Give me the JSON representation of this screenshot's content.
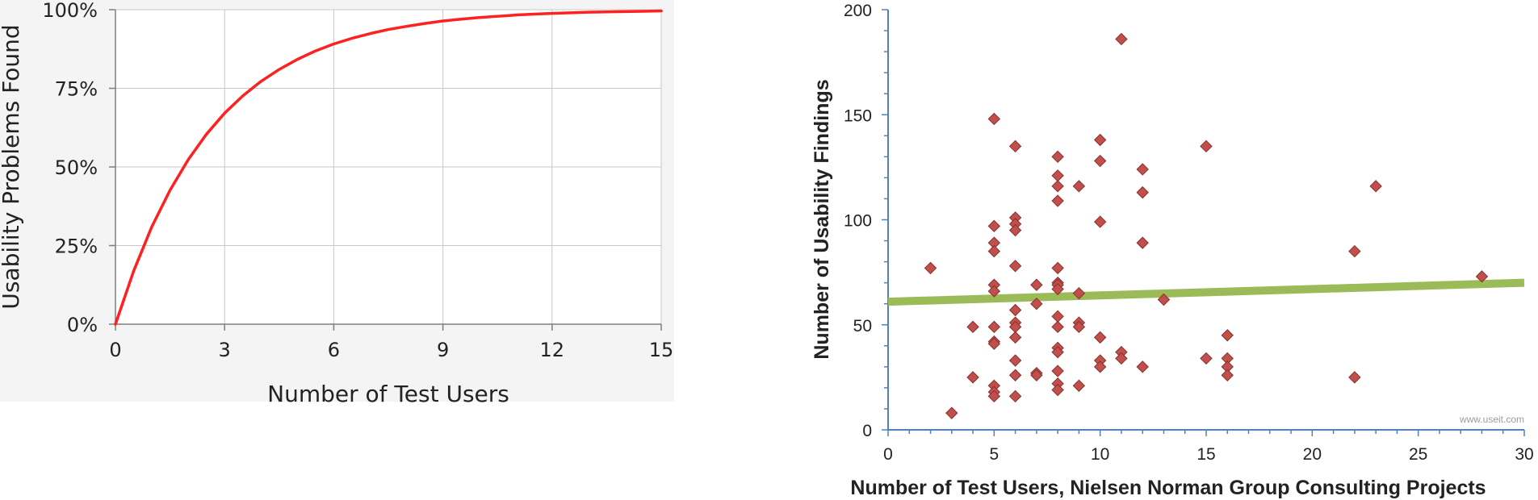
{
  "chart_data": [
    {
      "type": "line",
      "title": "",
      "xlabel": "Number of Test Users",
      "ylabel": "Usability Problems Found",
      "xlim": [
        0,
        15
      ],
      "ylim": [
        0,
        100
      ],
      "x_ticks": [
        0,
        3,
        6,
        9,
        12,
        15
      ],
      "x_tick_labels": [
        "0",
        "3",
        "6",
        "9",
        "12",
        "15"
      ],
      "y_ticks": [
        0,
        25,
        50,
        75,
        100
      ],
      "y_tick_labels": [
        "0%",
        "25%",
        "50%",
        "75%",
        "100%"
      ],
      "grid": true,
      "colors": {
        "line": "#ff2020",
        "grid": "#c8c8c8",
        "axis": "#7f7f7f",
        "text": "#222222"
      },
      "series": [
        {
          "x": [
            0,
            0.5,
            1,
            1.5,
            2,
            2.5,
            3,
            3.5,
            4,
            4.5,
            5,
            5.5,
            6,
            6.5,
            7,
            7.5,
            8,
            8.5,
            9,
            9.5,
            10,
            10.5,
            11,
            11.5,
            12,
            12.5,
            13,
            13.5,
            14,
            14.5,
            15
          ],
          "y": [
            0,
            16.9,
            31.0,
            42.6,
            52.3,
            60.4,
            67.1,
            72.6,
            77.2,
            81.0,
            84.2,
            86.9,
            89.1,
            90.9,
            92.4,
            93.7,
            94.7,
            95.6,
            96.4,
            97.0,
            97.5,
            97.9,
            98.3,
            98.6,
            98.8,
            99.0,
            99.2,
            99.3,
            99.4,
            99.5,
            99.6
          ]
        }
      ]
    },
    {
      "type": "scatter",
      "title": "",
      "xlabel": "Number of Test Users, Nielsen Norman Group Consulting Projects",
      "ylabel": "Number of Usability Findings",
      "xlim": [
        0,
        30
      ],
      "ylim": [
        0,
        200
      ],
      "x_ticks": [
        0,
        5,
        10,
        15,
        20,
        25,
        30
      ],
      "x_tick_labels": [
        "0",
        "5",
        "10",
        "15",
        "20",
        "25",
        "30"
      ],
      "y_ticks": [
        0,
        50,
        100,
        150,
        200
      ],
      "y_tick_labels": [
        "0",
        "50",
        "100",
        "150",
        "200"
      ],
      "grid": false,
      "colors": {
        "marker": "#c0504d",
        "marker_stroke": "#8b2f2b",
        "trendline": "#9bbb59",
        "axis": "#4f81bd",
        "text": "#222222"
      },
      "trendline": {
        "x": [
          0,
          30
        ],
        "y": [
          61,
          70
        ]
      },
      "watermark": "www.useit.com",
      "points": [
        [
          2,
          77
        ],
        [
          3,
          8
        ],
        [
          4,
          49
        ],
        [
          4,
          25
        ],
        [
          5,
          148
        ],
        [
          5,
          97
        ],
        [
          5,
          89
        ],
        [
          5,
          85
        ],
        [
          5,
          69
        ],
        [
          5,
          66
        ],
        [
          5,
          49
        ],
        [
          5,
          42
        ],
        [
          5,
          41
        ],
        [
          5,
          21
        ],
        [
          5,
          18
        ],
        [
          5,
          16
        ],
        [
          6,
          135
        ],
        [
          6,
          101
        ],
        [
          6,
          98
        ],
        [
          6,
          95
        ],
        [
          6,
          78
        ],
        [
          6,
          57
        ],
        [
          6,
          51
        ],
        [
          6,
          49
        ],
        [
          6,
          44
        ],
        [
          6,
          33
        ],
        [
          6,
          26
        ],
        [
          6,
          16
        ],
        [
          7,
          69
        ],
        [
          7,
          60
        ],
        [
          7,
          27
        ],
        [
          7,
          26
        ],
        [
          8,
          130
        ],
        [
          8,
          121
        ],
        [
          8,
          116
        ],
        [
          8,
          109
        ],
        [
          8,
          77
        ],
        [
          8,
          70
        ],
        [
          8,
          69
        ],
        [
          8,
          67
        ],
        [
          8,
          54
        ],
        [
          8,
          49
        ],
        [
          8,
          39
        ],
        [
          8,
          37
        ],
        [
          8,
          28
        ],
        [
          8,
          22
        ],
        [
          8,
          19
        ],
        [
          9,
          116
        ],
        [
          9,
          65
        ],
        [
          9,
          51
        ],
        [
          9,
          49
        ],
        [
          9,
          21
        ],
        [
          10,
          138
        ],
        [
          10,
          128
        ],
        [
          10,
          99
        ],
        [
          10,
          44
        ],
        [
          10,
          33
        ],
        [
          10,
          30
        ],
        [
          11,
          186
        ],
        [
          11,
          37
        ],
        [
          11,
          34
        ],
        [
          12,
          124
        ],
        [
          12,
          113
        ],
        [
          12,
          89
        ],
        [
          12,
          30
        ],
        [
          13,
          62
        ],
        [
          15,
          135
        ],
        [
          15,
          34
        ],
        [
          16,
          45
        ],
        [
          16,
          34
        ],
        [
          16,
          30
        ],
        [
          16,
          26
        ],
        [
          22,
          85
        ],
        [
          22,
          25
        ],
        [
          23,
          116
        ],
        [
          28,
          73
        ]
      ]
    }
  ]
}
